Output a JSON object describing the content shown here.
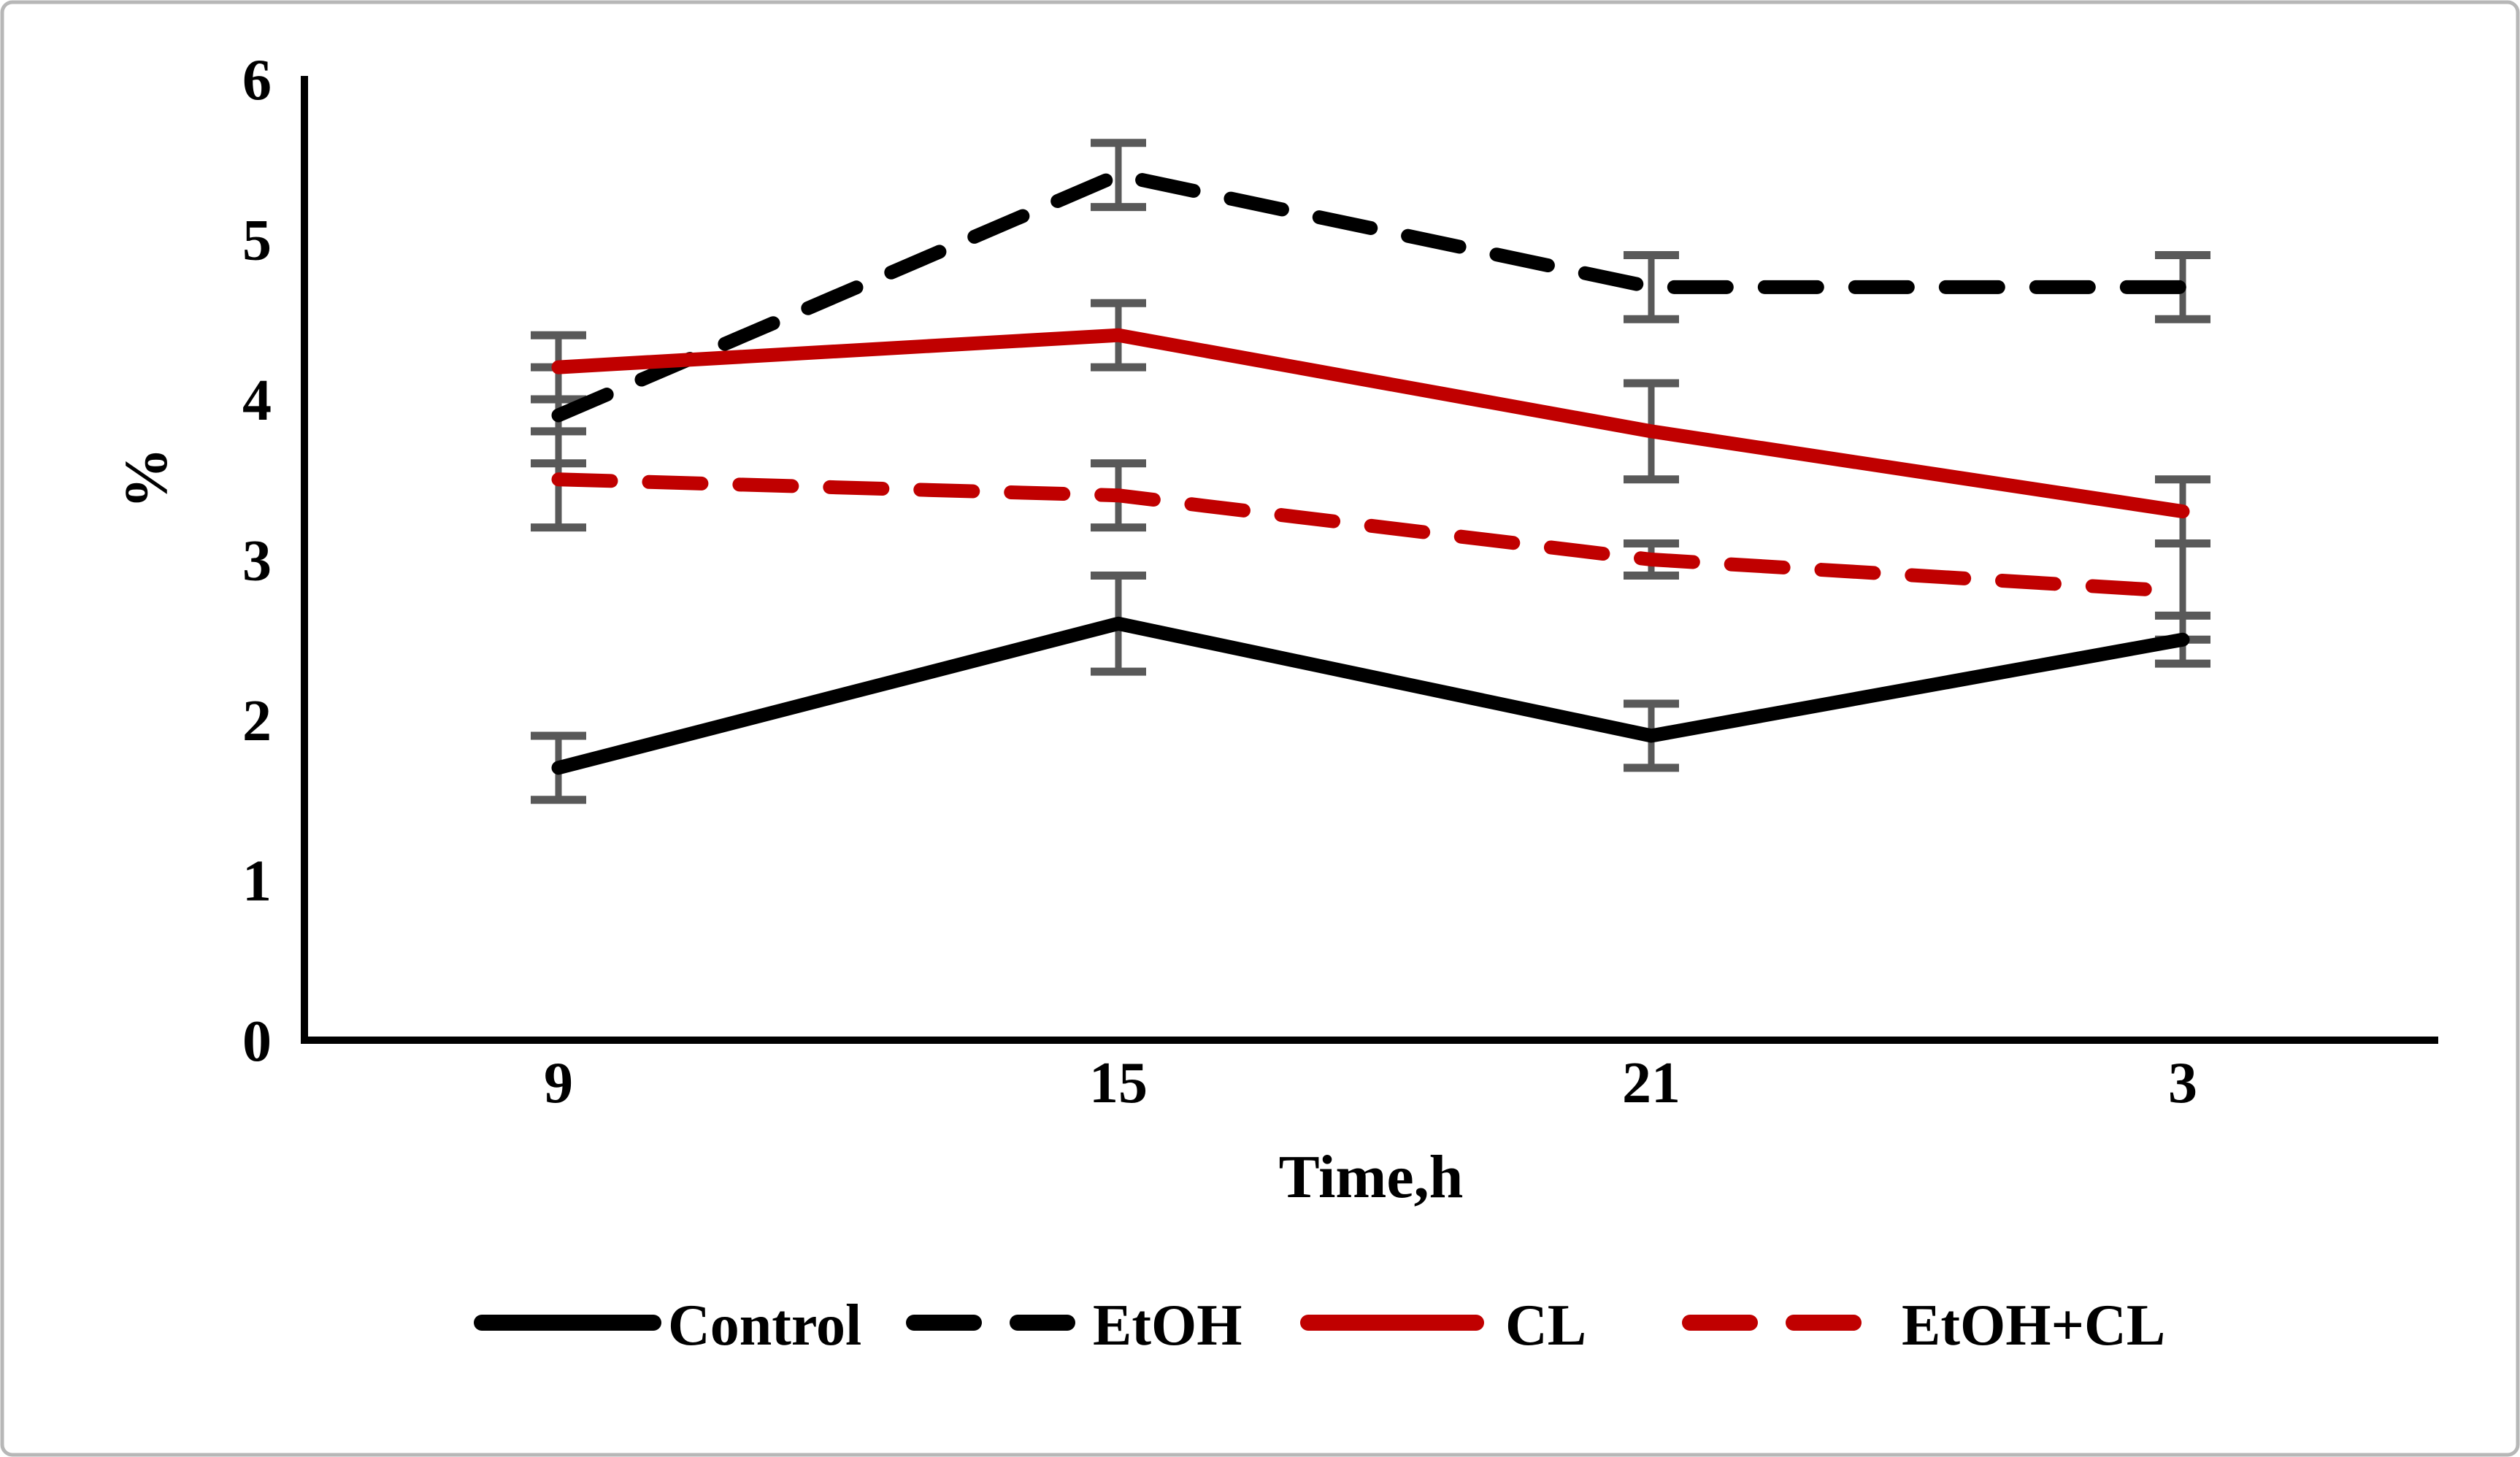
{
  "figure": {
    "background": "#ffffff",
    "border_color": "#b7b7b7"
  },
  "chart_data": {
    "type": "line",
    "title": "",
    "xlabel": "Time,h",
    "ylabel": "%",
    "categories": [
      "9",
      "15",
      "21",
      "3"
    ],
    "yticks": [
      "0",
      "1",
      "2",
      "3",
      "4",
      "5",
      "6"
    ],
    "ylim": [
      0,
      6
    ],
    "grid": false,
    "legend_position": "bottom",
    "error_bar_color": "#595959",
    "series": [
      {
        "name": "Control",
        "color": "#000000",
        "style": "solid",
        "values": [
          1.7,
          2.6,
          1.9,
          2.5
        ],
        "errors": [
          0.2,
          0.3,
          0.2,
          0.15
        ]
      },
      {
        "name": "EtOH",
        "color": "#000000",
        "style": "dashed",
        "values": [
          3.9,
          5.4,
          4.7,
          4.7
        ],
        "errors": [
          0.3,
          0.2,
          0.2,
          0.2
        ]
      },
      {
        "name": "CL",
        "color": "#c00000",
        "style": "solid",
        "values": [
          4.2,
          4.4,
          3.8,
          3.3
        ],
        "errors": [
          0.2,
          0.2,
          0.3,
          0.2
        ]
      },
      {
        "name": "EtOH+CL",
        "color": "#c00000",
        "style": "dashed",
        "values": [
          3.5,
          3.4,
          3.0,
          2.8
        ],
        "errors": [
          0.3,
          0.2,
          0.1,
          0.3
        ]
      }
    ]
  }
}
